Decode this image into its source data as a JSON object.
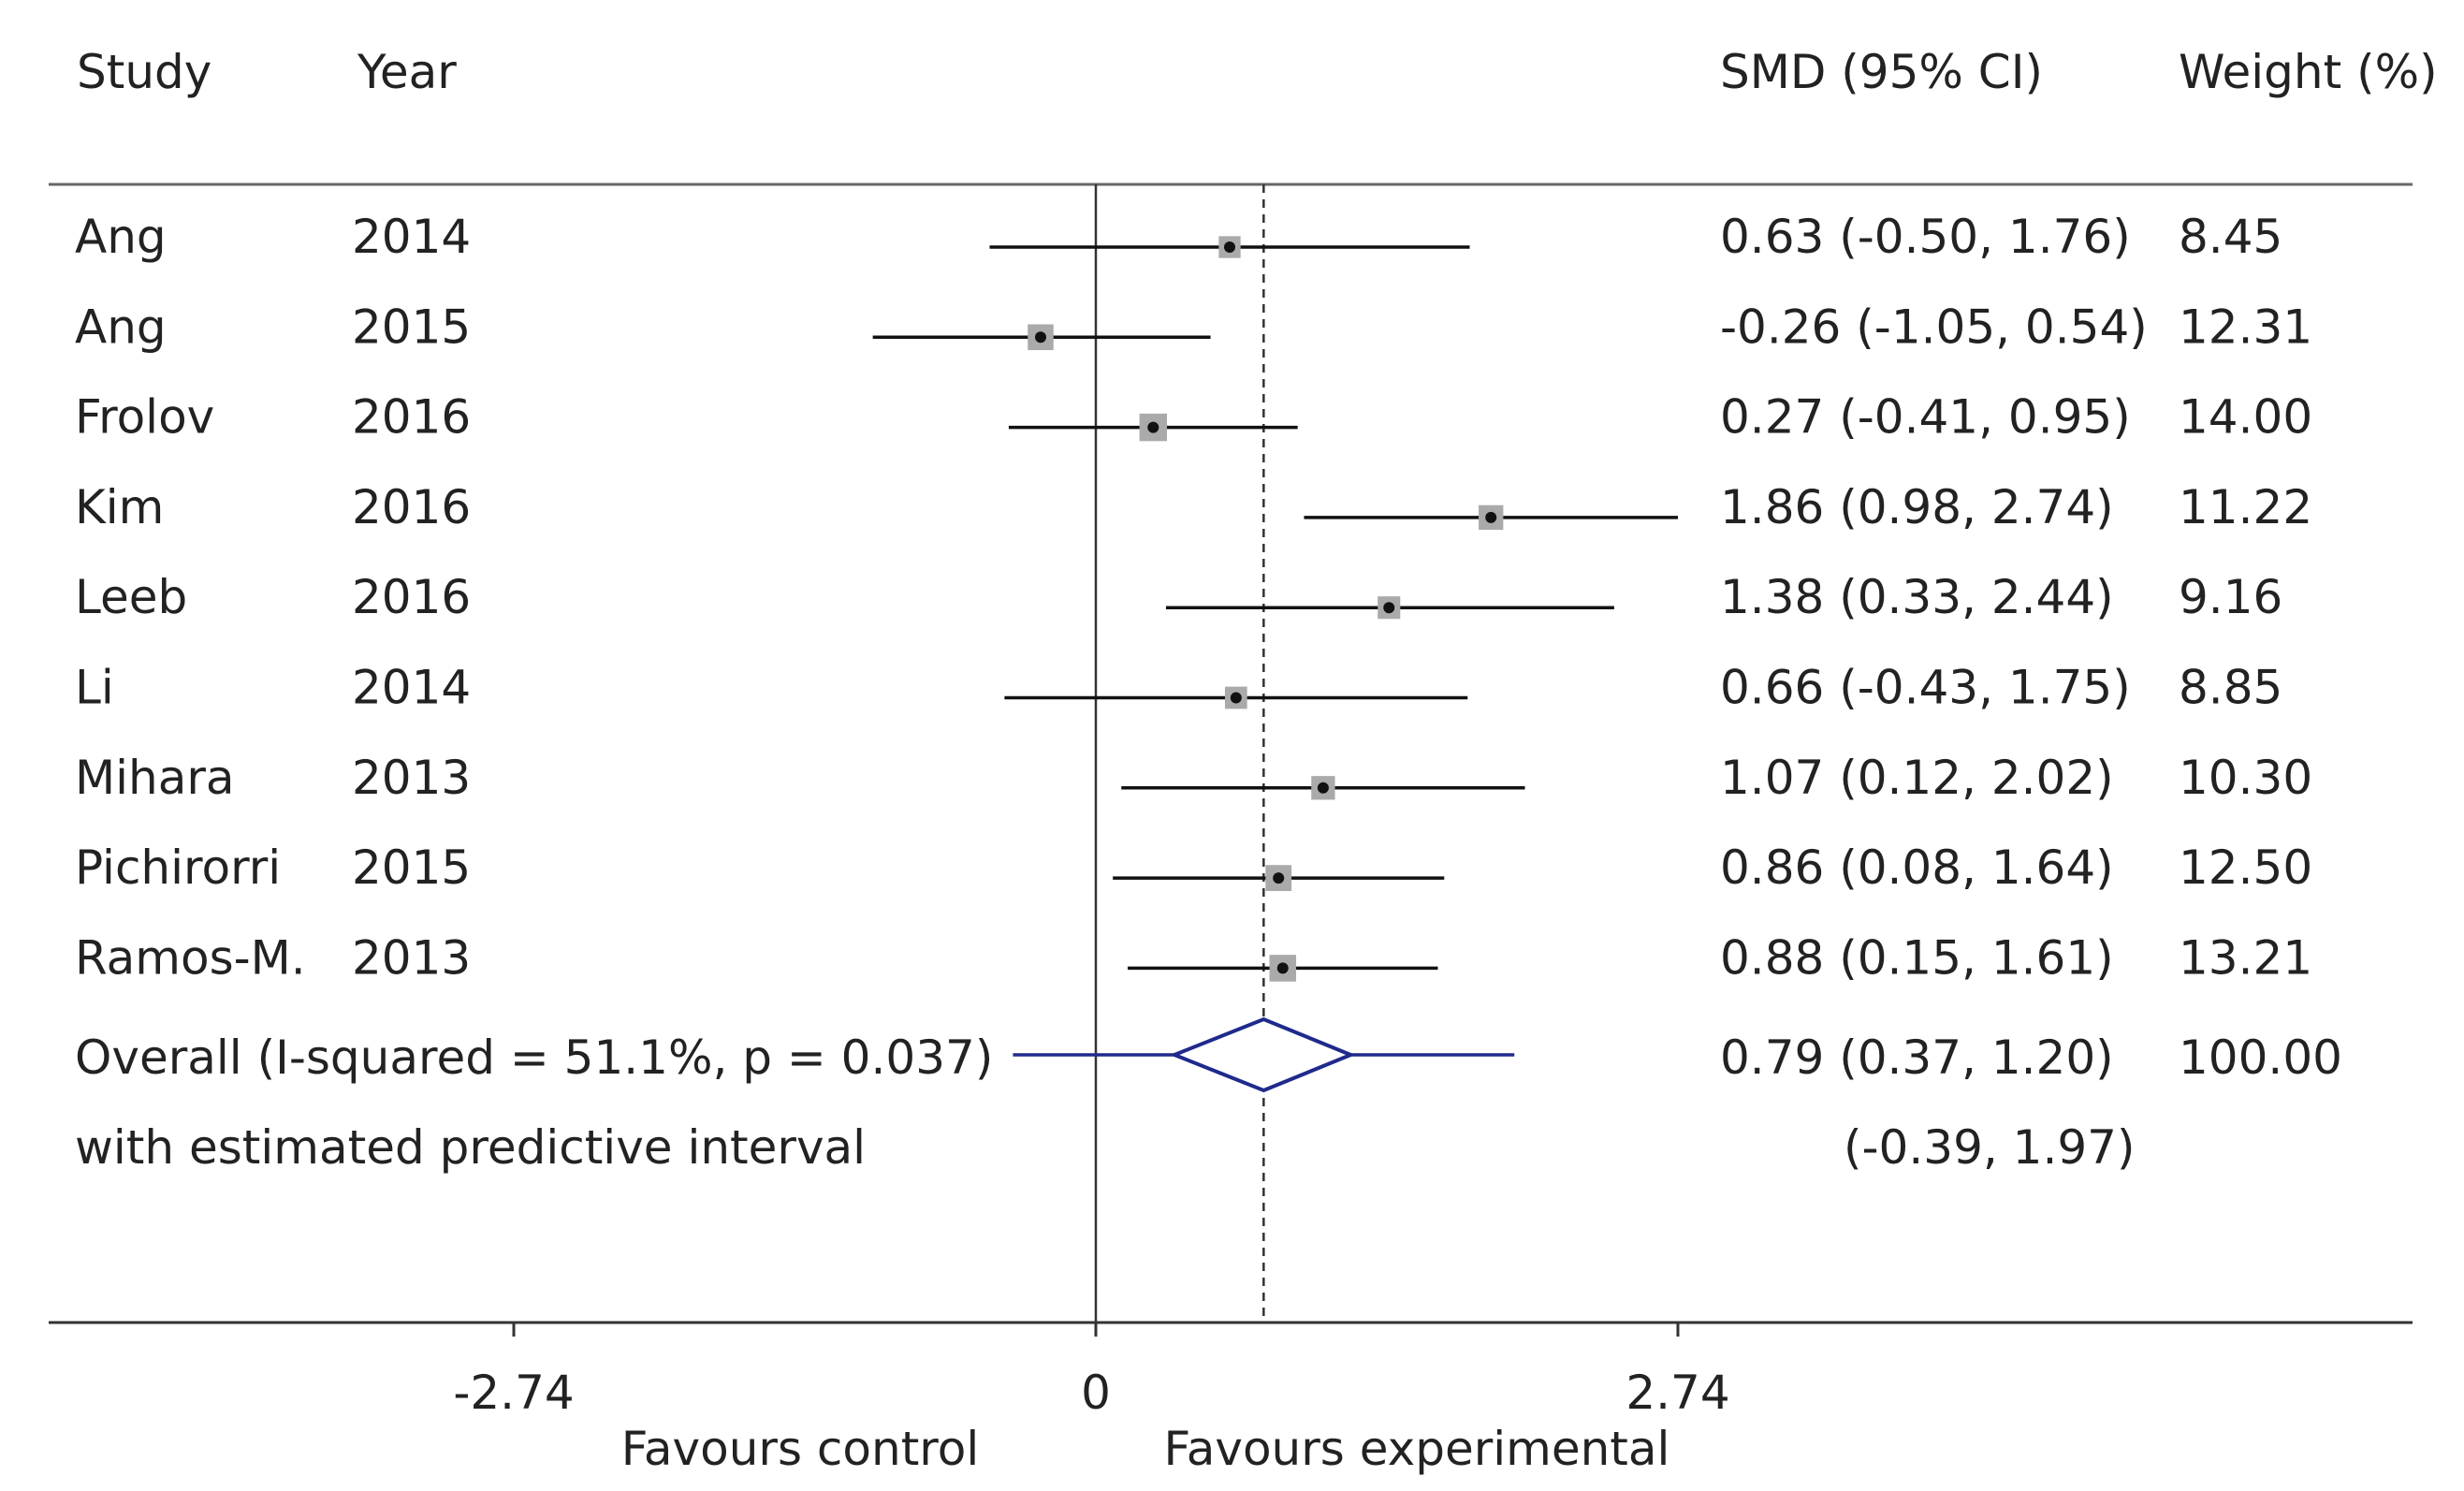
{
  "header": {
    "study": "Study",
    "year": "Year",
    "effect": "SMD (95% CI)",
    "weight": "Weight (%)"
  },
  "axis": {
    "ticks": [
      "-2.74",
      "0",
      "2.74"
    ],
    "label_left": "Favours control",
    "label_right": "Favours experimental"
  },
  "chart_data": {
    "type": "forest",
    "measure": "SMD (95% CI)",
    "xlim": [
      -5.45,
      5.82
    ],
    "ticks": [
      -2.74,
      0,
      2.74
    ],
    "null_line": 0,
    "overall_line": 0.79,
    "studies": [
      {
        "study": "Ang",
        "year": "2014",
        "smd": 0.63,
        "lo": -0.5,
        "hi": 1.76,
        "ci_text": "0.63 (-0.50, 1.76)",
        "weight": "8.45"
      },
      {
        "study": "Ang",
        "year": "2015",
        "smd": -0.26,
        "lo": -1.05,
        "hi": 0.54,
        "ci_text": "-0.26 (-1.05, 0.54)",
        "weight": "12.31"
      },
      {
        "study": "Frolov",
        "year": "2016",
        "smd": 0.27,
        "lo": -0.41,
        "hi": 0.95,
        "ci_text": "0.27 (-0.41, 0.95)",
        "weight": "14.00"
      },
      {
        "study": "Kim",
        "year": "2016",
        "smd": 1.86,
        "lo": 0.98,
        "hi": 2.74,
        "ci_text": "1.86 (0.98, 2.74)",
        "weight": "11.22"
      },
      {
        "study": "Leeb",
        "year": "2016",
        "smd": 1.38,
        "lo": 0.33,
        "hi": 2.44,
        "ci_text": "1.38 (0.33, 2.44)",
        "weight": "9.16"
      },
      {
        "study": "Li",
        "year": "2014",
        "smd": 0.66,
        "lo": -0.43,
        "hi": 1.75,
        "ci_text": "0.66 (-0.43, 1.75)",
        "weight": "8.85"
      },
      {
        "study": "Mihara",
        "year": "2013",
        "smd": 1.07,
        "lo": 0.12,
        "hi": 2.02,
        "ci_text": "1.07 (0.12, 2.02)",
        "weight": "10.30"
      },
      {
        "study": "Pichirorri",
        "year": "2015",
        "smd": 0.86,
        "lo": 0.08,
        "hi": 1.64,
        "ci_text": "0.86 (0.08, 1.64)",
        "weight": "12.50"
      },
      {
        "study": "Ramos-M.",
        "year": "2013",
        "smd": 0.88,
        "lo": 0.15,
        "hi": 1.61,
        "ci_text": "0.88 (0.15, 1.61)",
        "weight": "13.21"
      }
    ],
    "overall": {
      "label": "Overall (I-squared = 51.1%, p = 0.037)",
      "smd": 0.79,
      "lo": 0.37,
      "hi": 1.2,
      "pi_lo": -0.39,
      "pi_hi": 1.97,
      "ci_text": "0.79 (0.37, 1.20)",
      "weight": "100.00"
    },
    "predictive": {
      "label": "with estimated predictive interval",
      "text": "(-0.39, 1.97)"
    },
    "colors": {
      "ci_line": "#111111",
      "box": "#aaaaaa",
      "point": "#111111",
      "overall": "#1f2a8c",
      "axis": "#333333"
    }
  }
}
